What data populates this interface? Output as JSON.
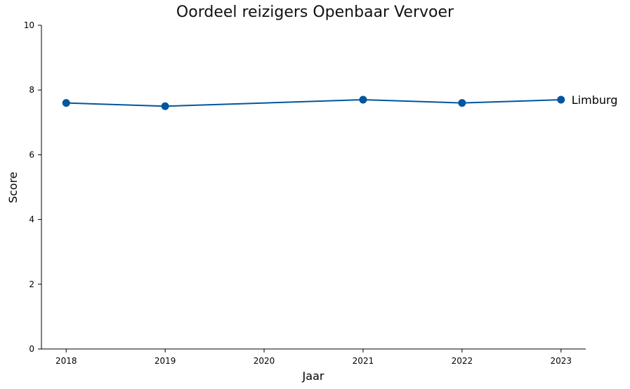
{
  "chart_data": {
    "type": "line",
    "title": "Oordeel reizigers Openbaar Vervoer",
    "xlabel": "Jaar",
    "ylabel": "Score",
    "x_ticks": [
      2018,
      2019,
      2020,
      2021,
      2022,
      2023
    ],
    "y_ticks": [
      0,
      2,
      4,
      6,
      8,
      10
    ],
    "ylim": [
      0,
      10
    ],
    "xlim": [
      2017.75,
      2023.25
    ],
    "grid": false,
    "legend": "none",
    "series": [
      {
        "name": "Limburg",
        "color": "#00569e",
        "x": [
          2018,
          2019,
          2021,
          2022,
          2023
        ],
        "y": [
          7.6,
          7.5,
          7.7,
          7.6,
          7.7
        ]
      }
    ]
  }
}
